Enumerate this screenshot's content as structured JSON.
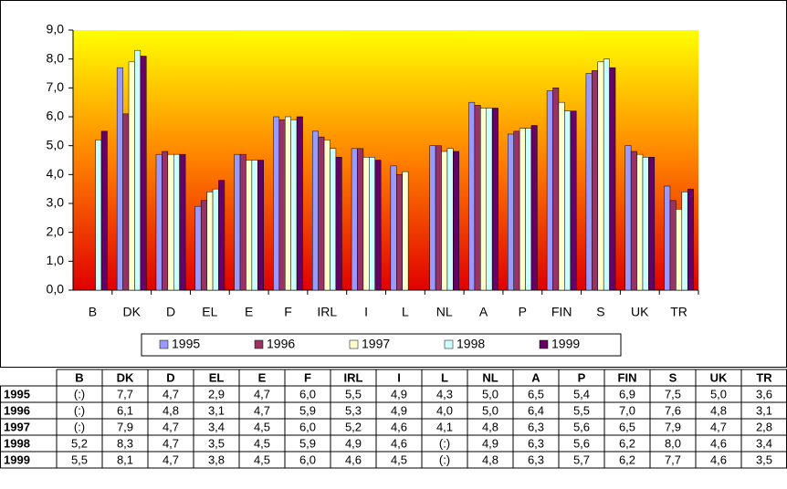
{
  "chart_data": {
    "type": "bar",
    "categories": [
      "B",
      "DK",
      "D",
      "EL",
      "E",
      "F",
      "IRL",
      "I",
      "L",
      "NL",
      "A",
      "P",
      "FIN",
      "S",
      "UK",
      "TR"
    ],
    "series": [
      {
        "name": "1995",
        "color": "#9999ff",
        "values": [
          null,
          7.7,
          4.7,
          2.9,
          4.7,
          6.0,
          5.5,
          4.9,
          4.3,
          5.0,
          6.5,
          5.4,
          6.9,
          7.5,
          5.0,
          3.6
        ],
        "value_labels": [
          "(:)",
          "7,7",
          "4,7",
          "2,9",
          "4,7",
          "6,0",
          "5,5",
          "4,9",
          "4,3",
          "5,0",
          "6,5",
          "5,4",
          "6,9",
          "7,5",
          "5,0",
          "3,6"
        ]
      },
      {
        "name": "1996",
        "color": "#993366",
        "values": [
          null,
          6.1,
          4.8,
          3.1,
          4.7,
          5.9,
          5.3,
          4.9,
          4.0,
          5.0,
          6.4,
          5.5,
          7.0,
          7.6,
          4.8,
          3.1
        ],
        "value_labels": [
          "(:)",
          "6,1",
          "4,8",
          "3,1",
          "4,7",
          "5,9",
          "5,3",
          "4,9",
          "4,0",
          "5,0",
          "6,4",
          "5,5",
          "7,0",
          "7,6",
          "4,8",
          "3,1"
        ]
      },
      {
        "name": "1997",
        "color": "#ffffcc",
        "values": [
          null,
          7.9,
          4.7,
          3.4,
          4.5,
          6.0,
          5.2,
          4.6,
          4.1,
          4.8,
          6.3,
          5.6,
          6.5,
          7.9,
          4.7,
          2.8
        ],
        "value_labels": [
          "(:)",
          "7,9",
          "4,7",
          "3,4",
          "4,5",
          "6,0",
          "5,2",
          "4,6",
          "4,1",
          "4,8",
          "6,3",
          "5,6",
          "6,5",
          "7,9",
          "4,7",
          "2,8"
        ]
      },
      {
        "name": "1998",
        "color": "#ccffff",
        "values": [
          5.2,
          8.3,
          4.7,
          3.5,
          4.5,
          5.9,
          4.9,
          4.6,
          null,
          4.9,
          6.3,
          5.6,
          6.2,
          8.0,
          4.6,
          3.4
        ],
        "value_labels": [
          "5,2",
          "8,3",
          "4,7",
          "3,5",
          "4,5",
          "5,9",
          "4,9",
          "4,6",
          "(:)",
          "4,9",
          "6,3",
          "5,6",
          "6,2",
          "8,0",
          "4,6",
          "3,4"
        ]
      },
      {
        "name": "1999",
        "color": "#660066",
        "values": [
          5.5,
          8.1,
          4.7,
          3.8,
          4.5,
          6.0,
          4.6,
          4.5,
          null,
          4.8,
          6.3,
          5.7,
          6.2,
          7.7,
          4.6,
          3.5
        ],
        "value_labels": [
          "5,5",
          "8,1",
          "4,7",
          "3,8",
          "4,5",
          "6,0",
          "4,6",
          "4,5",
          "(:)",
          "4,8",
          "6,3",
          "5,7",
          "6,2",
          "7,7",
          "4,6",
          "3,5"
        ]
      }
    ],
    "ylim": [
      0,
      9
    ],
    "yticks": [
      {
        "value": 0,
        "label": "0,0"
      },
      {
        "value": 1,
        "label": "1,0"
      },
      {
        "value": 2,
        "label": "2,0"
      },
      {
        "value": 3,
        "label": "3,0"
      },
      {
        "value": 4,
        "label": "4,0"
      },
      {
        "value": 5,
        "label": "5,0"
      },
      {
        "value": 6,
        "label": "6,0"
      },
      {
        "value": 7,
        "label": "7,0"
      },
      {
        "value": 8,
        "label": "8,0"
      },
      {
        "value": 9,
        "label": "9,0"
      }
    ],
    "legend": "bottom"
  }
}
